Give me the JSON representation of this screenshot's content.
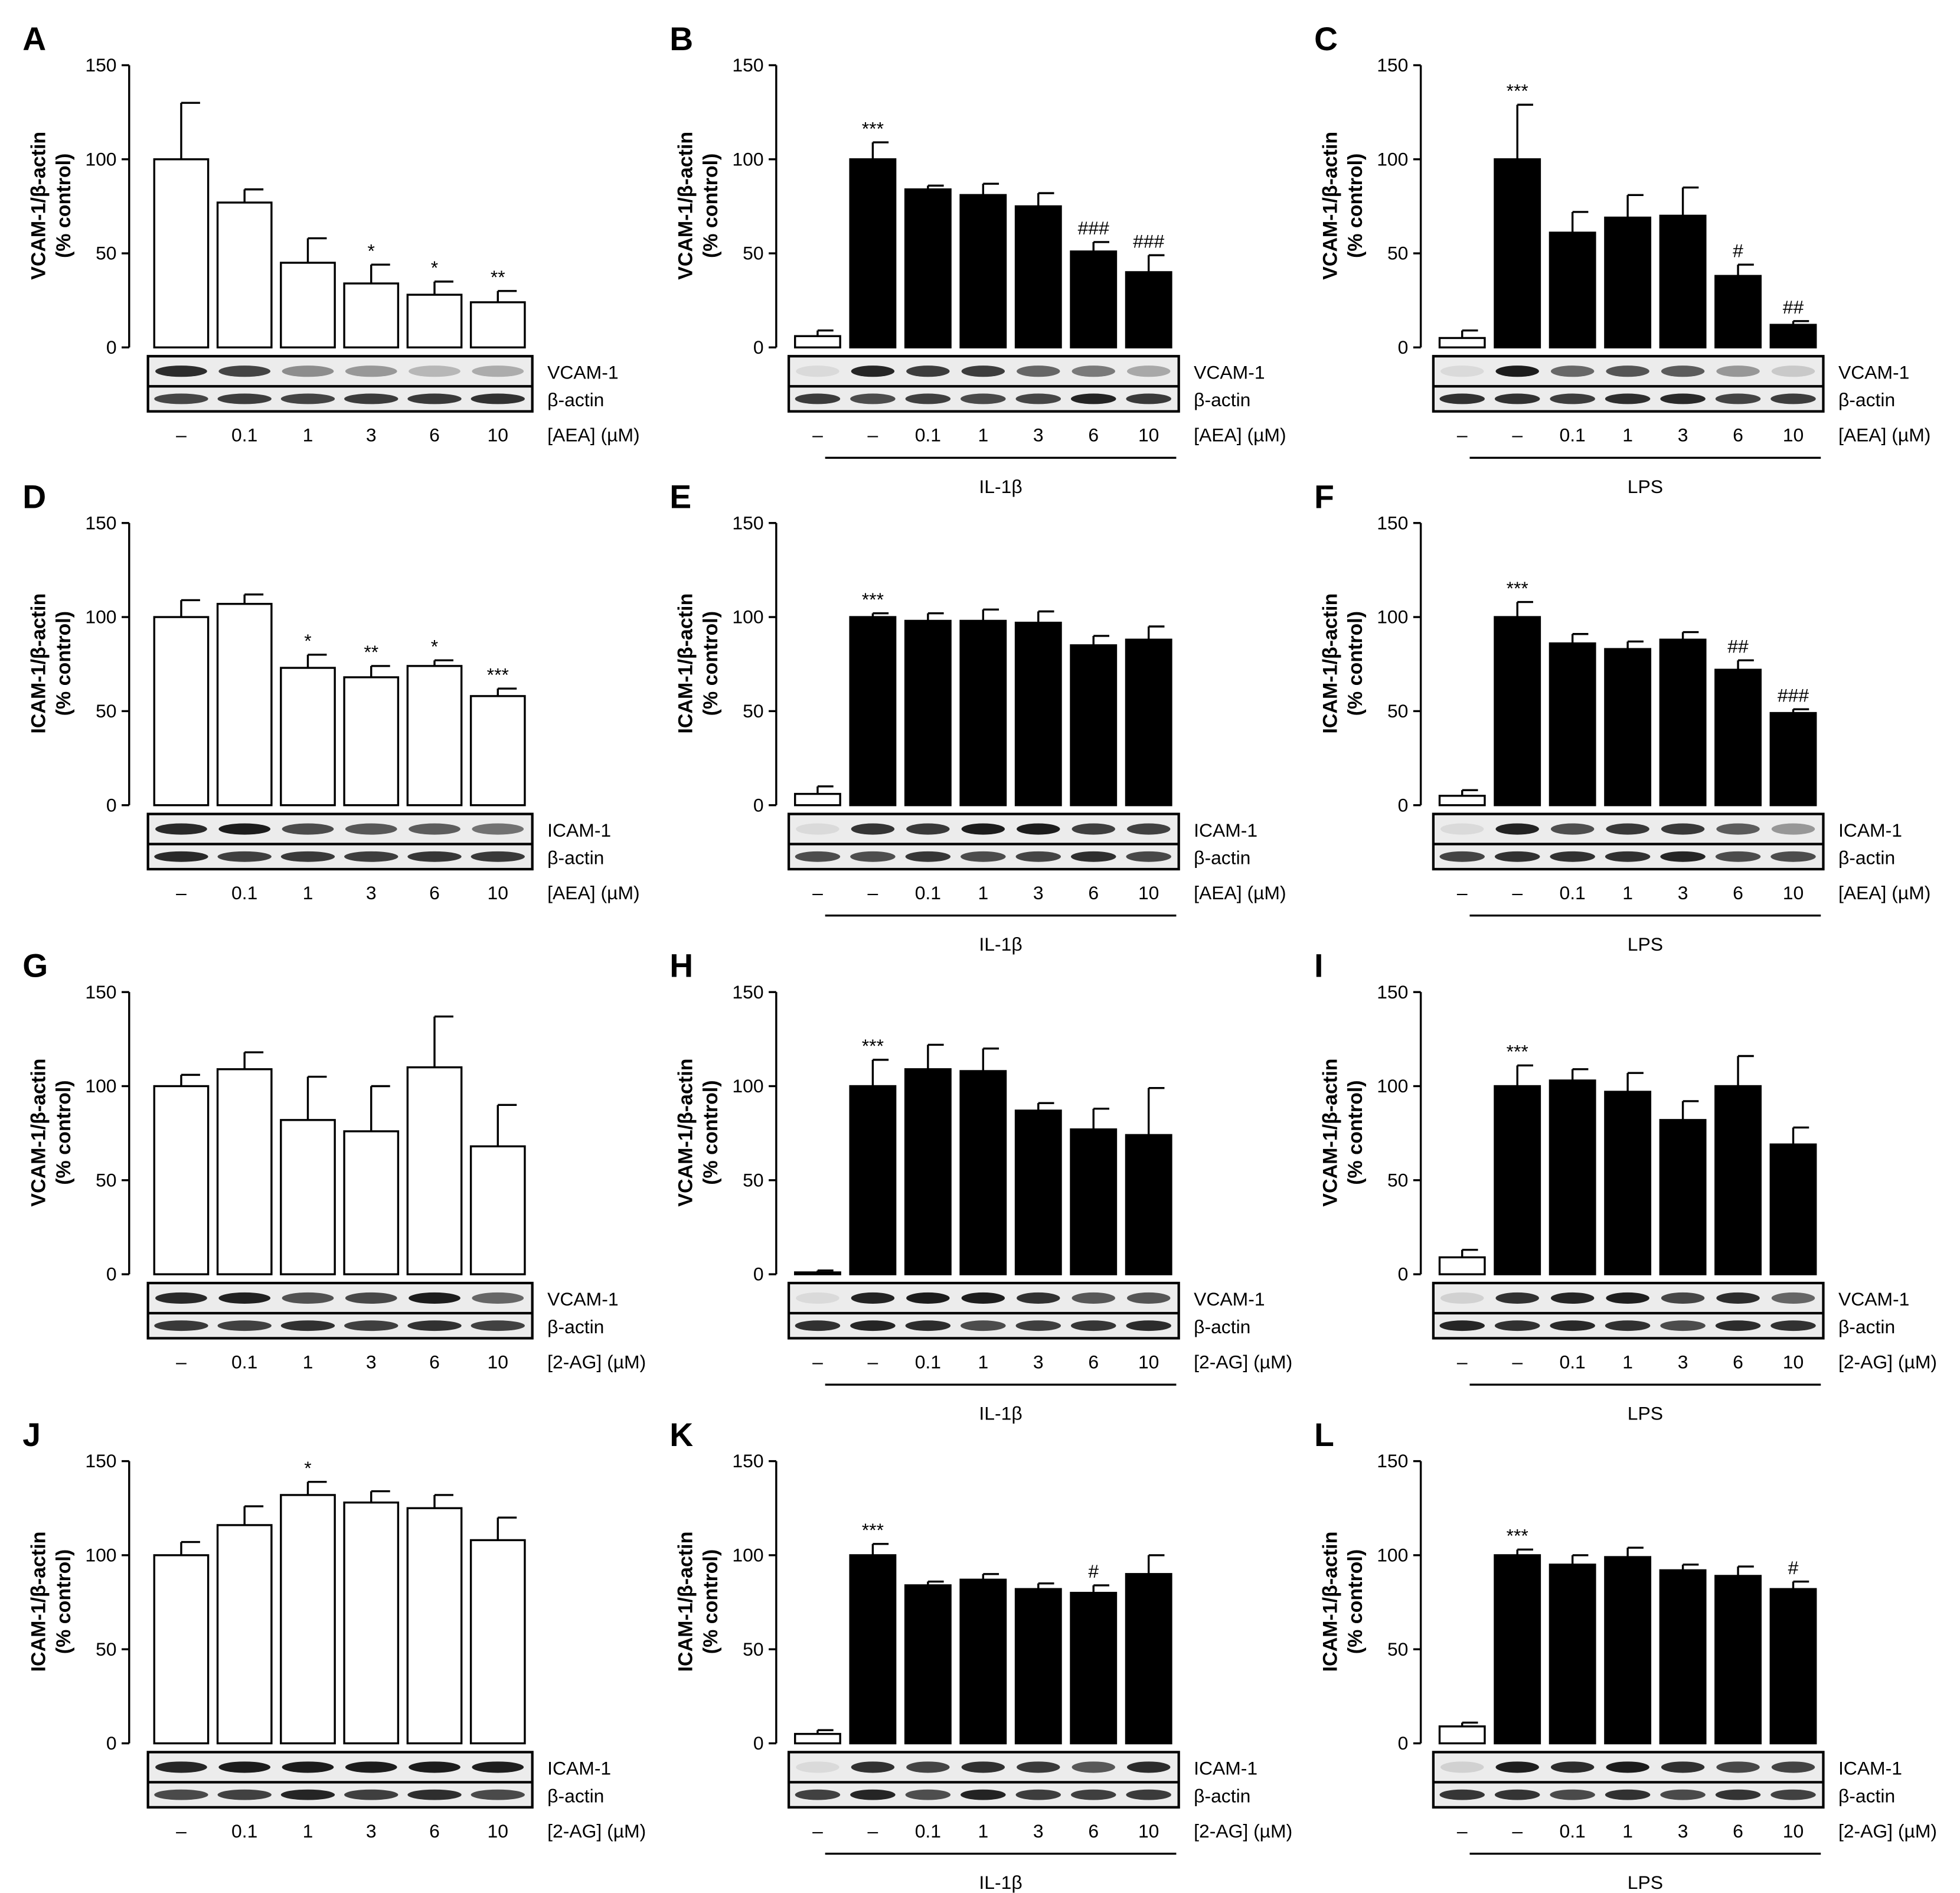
{
  "figure": {
    "tick_labels": [
      "0",
      "50",
      "100",
      "150"
    ],
    "blot_row_label": "β-actin"
  },
  "chart_data": [
    {
      "panel": "A",
      "type": "bar",
      "ylabel": [
        "VCAM-1/β-actin",
        "(% control)"
      ],
      "ylim": [
        0,
        150
      ],
      "categories": [
        "–",
        "0.1",
        "1",
        "3",
        "6",
        "10"
      ],
      "values": [
        100,
        77,
        45,
        34,
        28,
        24
      ],
      "errors": [
        30,
        7,
        13,
        10,
        7,
        6
      ],
      "fills": [
        "open",
        "open",
        "open",
        "open",
        "open",
        "open"
      ],
      "significance": [
        "",
        "",
        "",
        "*",
        "*",
        "**"
      ],
      "blot_label": "VCAM-1",
      "treatment_label": "[AEA] (µM)",
      "group_label": ""
    },
    {
      "panel": "B",
      "type": "bar",
      "ylabel": [
        "VCAM-1/β-actin",
        "(% control)"
      ],
      "ylim": [
        0,
        150
      ],
      "categories": [
        "–",
        "–",
        "0.1",
        "1",
        "3",
        "6",
        "10"
      ],
      "values": [
        6,
        100,
        84,
        81,
        75,
        51,
        40
      ],
      "errors": [
        3,
        9,
        2,
        6,
        7,
        5,
        9
      ],
      "fills": [
        "open",
        "solid",
        "solid",
        "solid",
        "solid",
        "solid",
        "solid"
      ],
      "significance": [
        "",
        "***",
        "",
        "",
        "",
        "###",
        "###"
      ],
      "blot_label": "VCAM-1",
      "treatment_label": "[AEA] (µM)",
      "group_label": "IL-1β"
    },
    {
      "panel": "C",
      "type": "bar",
      "ylabel": [
        "VCAM-1/β-actin",
        "(% control)"
      ],
      "ylim": [
        0,
        150
      ],
      "categories": [
        "–",
        "–",
        "0.1",
        "1",
        "3",
        "6",
        "10"
      ],
      "values": [
        5,
        100,
        61,
        69,
        70,
        38,
        12
      ],
      "errors": [
        4,
        29,
        11,
        12,
        15,
        6,
        2
      ],
      "fills": [
        "open",
        "solid",
        "solid",
        "solid",
        "solid",
        "solid",
        "solid"
      ],
      "significance": [
        "",
        "***",
        "",
        "",
        "",
        "#",
        "##"
      ],
      "blot_label": "VCAM-1",
      "treatment_label": "[AEA] (µM)",
      "group_label": "LPS"
    },
    {
      "panel": "D",
      "type": "bar",
      "ylabel": [
        "ICAM-1/β-actin",
        "(% control)"
      ],
      "ylim": [
        0,
        150
      ],
      "categories": [
        "–",
        "0.1",
        "1",
        "3",
        "6",
        "10"
      ],
      "values": [
        100,
        107,
        73,
        68,
        74,
        58
      ],
      "errors": [
        9,
        5,
        7,
        6,
        3,
        4
      ],
      "fills": [
        "open",
        "open",
        "open",
        "open",
        "open",
        "open"
      ],
      "significance": [
        "",
        "",
        "*",
        "**",
        "*",
        "***"
      ],
      "blot_label": "ICAM-1",
      "treatment_label": "[AEA] (µM)",
      "group_label": ""
    },
    {
      "panel": "E",
      "type": "bar",
      "ylabel": [
        "ICAM-1/β-actin",
        "(% control)"
      ],
      "ylim": [
        0,
        150
      ],
      "categories": [
        "–",
        "–",
        "0.1",
        "1",
        "3",
        "6",
        "10"
      ],
      "values": [
        6,
        100,
        98,
        98,
        97,
        85,
        88
      ],
      "errors": [
        4,
        2,
        4,
        6,
        6,
        5,
        7
      ],
      "fills": [
        "open",
        "solid",
        "solid",
        "solid",
        "solid",
        "solid",
        "solid"
      ],
      "significance": [
        "",
        "***",
        "",
        "",
        "",
        "",
        ""
      ],
      "blot_label": "ICAM-1",
      "treatment_label": "[AEA] (µM)",
      "group_label": "IL-1β"
    },
    {
      "panel": "F",
      "type": "bar",
      "ylabel": [
        "ICAM-1/β-actin",
        "(% control)"
      ],
      "ylim": [
        0,
        150
      ],
      "categories": [
        "–",
        "–",
        "0.1",
        "1",
        "3",
        "6",
        "10"
      ],
      "values": [
        5,
        100,
        86,
        83,
        88,
        72,
        49
      ],
      "errors": [
        3,
        8,
        5,
        4,
        4,
        5,
        2
      ],
      "fills": [
        "open",
        "solid",
        "solid",
        "solid",
        "solid",
        "solid",
        "solid"
      ],
      "significance": [
        "",
        "***",
        "",
        "",
        "",
        "##",
        "###"
      ],
      "blot_label": "ICAM-1",
      "treatment_label": "[AEA] (µM)",
      "group_label": "LPS"
    },
    {
      "panel": "G",
      "type": "bar",
      "ylabel": [
        "VCAM-1/β-actin",
        "(% control)"
      ],
      "ylim": [
        0,
        150
      ],
      "categories": [
        "–",
        "0.1",
        "1",
        "3",
        "6",
        "10"
      ],
      "values": [
        100,
        109,
        82,
        76,
        110,
        68
      ],
      "errors": [
        6,
        9,
        23,
        24,
        27,
        22
      ],
      "fills": [
        "open",
        "open",
        "open",
        "open",
        "open",
        "open"
      ],
      "significance": [
        "",
        "",
        "",
        "",
        "",
        ""
      ],
      "blot_label": "VCAM-1",
      "treatment_label": "[2-AG] (µM)",
      "group_label": ""
    },
    {
      "panel": "H",
      "type": "bar",
      "ylabel": [
        "VCAM-1/β-actin",
        "(% control)"
      ],
      "ylim": [
        0,
        150
      ],
      "categories": [
        "–",
        "–",
        "0.1",
        "1",
        "3",
        "6",
        "10"
      ],
      "values": [
        1,
        100,
        109,
        108,
        87,
        77,
        74
      ],
      "errors": [
        1,
        14,
        13,
        12,
        4,
        11,
        25
      ],
      "fills": [
        "open",
        "solid",
        "solid",
        "solid",
        "solid",
        "solid",
        "solid"
      ],
      "significance": [
        "",
        "***",
        "",
        "",
        "",
        "",
        ""
      ],
      "blot_label": "VCAM-1",
      "treatment_label": "[2-AG] (µM)",
      "group_label": "IL-1β"
    },
    {
      "panel": "I",
      "type": "bar",
      "ylabel": [
        "VCAM-1/β-actin",
        "(% control)"
      ],
      "ylim": [
        0,
        150
      ],
      "categories": [
        "–",
        "–",
        "0.1",
        "1",
        "3",
        "6",
        "10"
      ],
      "values": [
        9,
        100,
        103,
        97,
        82,
        100,
        69
      ],
      "errors": [
        4,
        11,
        6,
        10,
        10,
        16,
        9
      ],
      "fills": [
        "open",
        "solid",
        "solid",
        "solid",
        "solid",
        "solid",
        "solid"
      ],
      "significance": [
        "",
        "***",
        "",
        "",
        "",
        "",
        ""
      ],
      "blot_label": "VCAM-1",
      "treatment_label": "[2-AG] (µM)",
      "group_label": "LPS"
    },
    {
      "panel": "J",
      "type": "bar",
      "ylabel": [
        "ICAM-1/β-actin",
        "(% control)"
      ],
      "ylim": [
        0,
        150
      ],
      "categories": [
        "–",
        "0.1",
        "1",
        "3",
        "6",
        "10"
      ],
      "values": [
        100,
        116,
        132,
        128,
        125,
        108
      ],
      "errors": [
        7,
        10,
        7,
        6,
        7,
        12
      ],
      "fills": [
        "open",
        "open",
        "open",
        "open",
        "open",
        "open"
      ],
      "significance": [
        "",
        "",
        "*",
        "",
        "",
        ""
      ],
      "blot_label": "ICAM-1",
      "treatment_label": "[2-AG] (µM)",
      "group_label": ""
    },
    {
      "panel": "K",
      "type": "bar",
      "ylabel": [
        "ICAM-1/β-actin",
        "(% control)"
      ],
      "ylim": [
        0,
        150
      ],
      "categories": [
        "–",
        "–",
        "0.1",
        "1",
        "3",
        "6",
        "10"
      ],
      "values": [
        5,
        100,
        84,
        87,
        82,
        80,
        90
      ],
      "errors": [
        2,
        6,
        2,
        3,
        3,
        4,
        10
      ],
      "fills": [
        "open",
        "solid",
        "solid",
        "solid",
        "solid",
        "solid",
        "solid"
      ],
      "significance": [
        "",
        "***",
        "",
        "",
        "",
        "#",
        ""
      ],
      "blot_label": "ICAM-1",
      "treatment_label": "[2-AG] (µM)",
      "group_label": "IL-1β"
    },
    {
      "panel": "L",
      "type": "bar",
      "ylabel": [
        "ICAM-1/β-actin",
        "(% control)"
      ],
      "ylim": [
        0,
        150
      ],
      "categories": [
        "–",
        "–",
        "0.1",
        "1",
        "3",
        "6",
        "10"
      ],
      "values": [
        9,
        100,
        95,
        99,
        92,
        89,
        82
      ],
      "errors": [
        2,
        3,
        5,
        5,
        3,
        5,
        4
      ],
      "fills": [
        "open",
        "solid",
        "solid",
        "solid",
        "solid",
        "solid",
        "solid"
      ],
      "significance": [
        "",
        "***",
        "",
        "",
        "",
        "",
        "#"
      ],
      "blot_label": "ICAM-1",
      "treatment_label": "[2-AG] (µM)",
      "group_label": "LPS"
    }
  ]
}
